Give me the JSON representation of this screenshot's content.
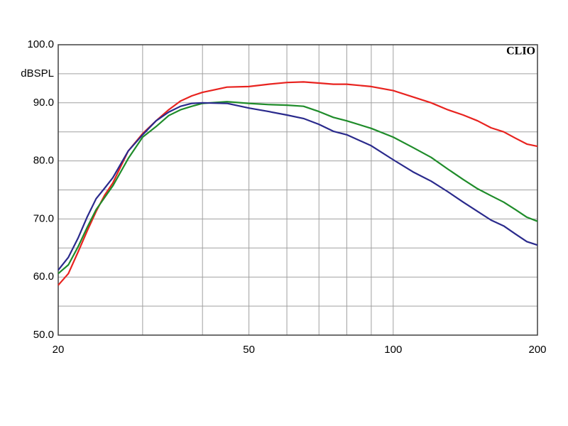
{
  "chart_data": {
    "type": "line",
    "xscale": "log",
    "grid": true,
    "y_label": "dBSPL",
    "brand": "CLIO",
    "xlim": [
      20,
      200
    ],
    "xticks": [
      20,
      50,
      100,
      200
    ],
    "xminor": [
      30,
      40,
      60,
      70,
      80,
      90
    ],
    "ylim": [
      50,
      100
    ],
    "yticks": [
      {
        "value": 50,
        "label": "50.0"
      },
      {
        "value": 60,
        "label": "60.0"
      },
      {
        "value": 70,
        "label": "70.0"
      },
      {
        "value": 80,
        "label": "80.0"
      },
      {
        "value": 90,
        "label": "90.0"
      },
      {
        "value": 100,
        "label": "100.0"
      }
    ],
    "yminor": [
      55,
      65,
      75,
      85,
      95
    ],
    "x": [
      20,
      21,
      22,
      23,
      24,
      25,
      26,
      28,
      30,
      32,
      34,
      36,
      38,
      40,
      45,
      50,
      55,
      60,
      65,
      70,
      75,
      80,
      90,
      100,
      110,
      120,
      130,
      140,
      150,
      160,
      170,
      180,
      190,
      200
    ],
    "series": [
      {
        "color": "#e8231f",
        "values": [
          58.6,
          60.6,
          64.3,
          68.0,
          71.3,
          74.1,
          76.2,
          81.7,
          84.7,
          86.9,
          88.8,
          90.3,
          91.2,
          91.8,
          92.7,
          92.8,
          93.2,
          93.5,
          93.6,
          93.4,
          93.2,
          93.2,
          92.8,
          92.1,
          91.0,
          90.0,
          88.8,
          87.9,
          86.9,
          85.7,
          85.0,
          83.9,
          82.9,
          82.5
        ]
      },
      {
        "color": "#1f8c2a",
        "values": [
          60.6,
          62.1,
          65.2,
          68.6,
          71.6,
          73.7,
          75.7,
          80.4,
          84.1,
          85.9,
          87.8,
          88.8,
          89.4,
          89.9,
          90.2,
          89.9,
          89.7,
          89.6,
          89.4,
          88.5,
          87.5,
          86.9,
          85.6,
          84.1,
          82.3,
          80.6,
          78.6,
          76.8,
          75.2,
          74.0,
          72.9,
          71.6,
          70.3,
          69.6
        ]
      },
      {
        "color": "#2a2a8c",
        "values": [
          61.2,
          63.4,
          66.7,
          70.4,
          73.5,
          75.3,
          77.1,
          81.7,
          84.5,
          86.9,
          88.4,
          89.4,
          89.9,
          90.0,
          89.9,
          89.1,
          88.5,
          87.9,
          87.3,
          86.3,
          85.1,
          84.5,
          82.6,
          80.2,
          78.1,
          76.5,
          74.7,
          72.9,
          71.3,
          69.8,
          68.8,
          67.4,
          66.1,
          65.5
        ]
      }
    ]
  }
}
